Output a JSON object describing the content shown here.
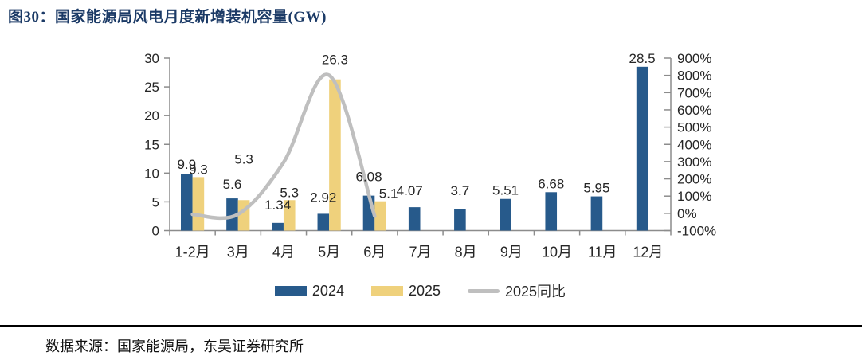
{
  "page": {
    "title": "图30：国家能源局风电月度新增装机容量(GW)",
    "source_note": "数据来源：国家能源局，东吴证券研究所"
  },
  "colors": {
    "bar_2024": "#275A8B",
    "bar_2025": "#EFD17C",
    "line_yoy": "#BFBFBF",
    "title_text": "#1B3A66",
    "axis_line": "#8C8C8C",
    "tick_text": "#262626",
    "label_text": "#1A1A1A"
  },
  "legend": {
    "items": [
      {
        "label": "2024",
        "type": "bar",
        "color_key": "bar_2024"
      },
      {
        "label": "2025",
        "type": "bar",
        "color_key": "bar_2025"
      },
      {
        "label": "2025同比",
        "type": "line",
        "color_key": "line_yoy"
      }
    ]
  },
  "chart_data": {
    "type": "bar",
    "subtype": "grouped bars with smoothed line on secondary axis",
    "title": "国家能源局风电月度新增装机容量(GW)",
    "categories": [
      "1-2月",
      "3月",
      "4月",
      "5月",
      "6月",
      "7月",
      "8月",
      "9月",
      "10月",
      "11月",
      "12月"
    ],
    "series": [
      {
        "name": "2024",
        "type": "bar",
        "axis": "left",
        "values": [
          9.9,
          5.6,
          1.34,
          2.92,
          6.08,
          4.07,
          3.7,
          5.51,
          6.68,
          5.95,
          28.5
        ],
        "labels": [
          "9.9",
          "5.6",
          "1.34",
          "2.92",
          "6.08",
          "4.07",
          "3.7",
          "5.51",
          "6.68",
          "5.95",
          "28.5"
        ]
      },
      {
        "name": "2025",
        "type": "bar",
        "axis": "left",
        "values": [
          9.3,
          5.3,
          5.3,
          26.3,
          5.1,
          null,
          null,
          null,
          null,
          null,
          null
        ],
        "labels": [
          "9.3",
          "5.3",
          "5.3",
          "26.3",
          "5.1"
        ]
      },
      {
        "name": "2025同比",
        "type": "line",
        "axis": "right",
        "unit": "%",
        "values": [
          -6.1,
          -5.4,
          295.5,
          800.7,
          -16.1,
          null,
          null,
          null,
          null,
          null,
          null
        ]
      }
    ],
    "left_axis": {
      "min": 0,
      "max": 30,
      "step": 5,
      "ticks": [
        "0",
        "5",
        "10",
        "15",
        "20",
        "25",
        "30"
      ]
    },
    "right_axis": {
      "min": -100,
      "max": 900,
      "step": 100,
      "ticks": [
        "-100%",
        "0%",
        "100%",
        "200%",
        "300%",
        "400%",
        "500%",
        "600%",
        "700%",
        "800%",
        "900%"
      ]
    },
    "grid": false,
    "legend_position": "bottom"
  }
}
